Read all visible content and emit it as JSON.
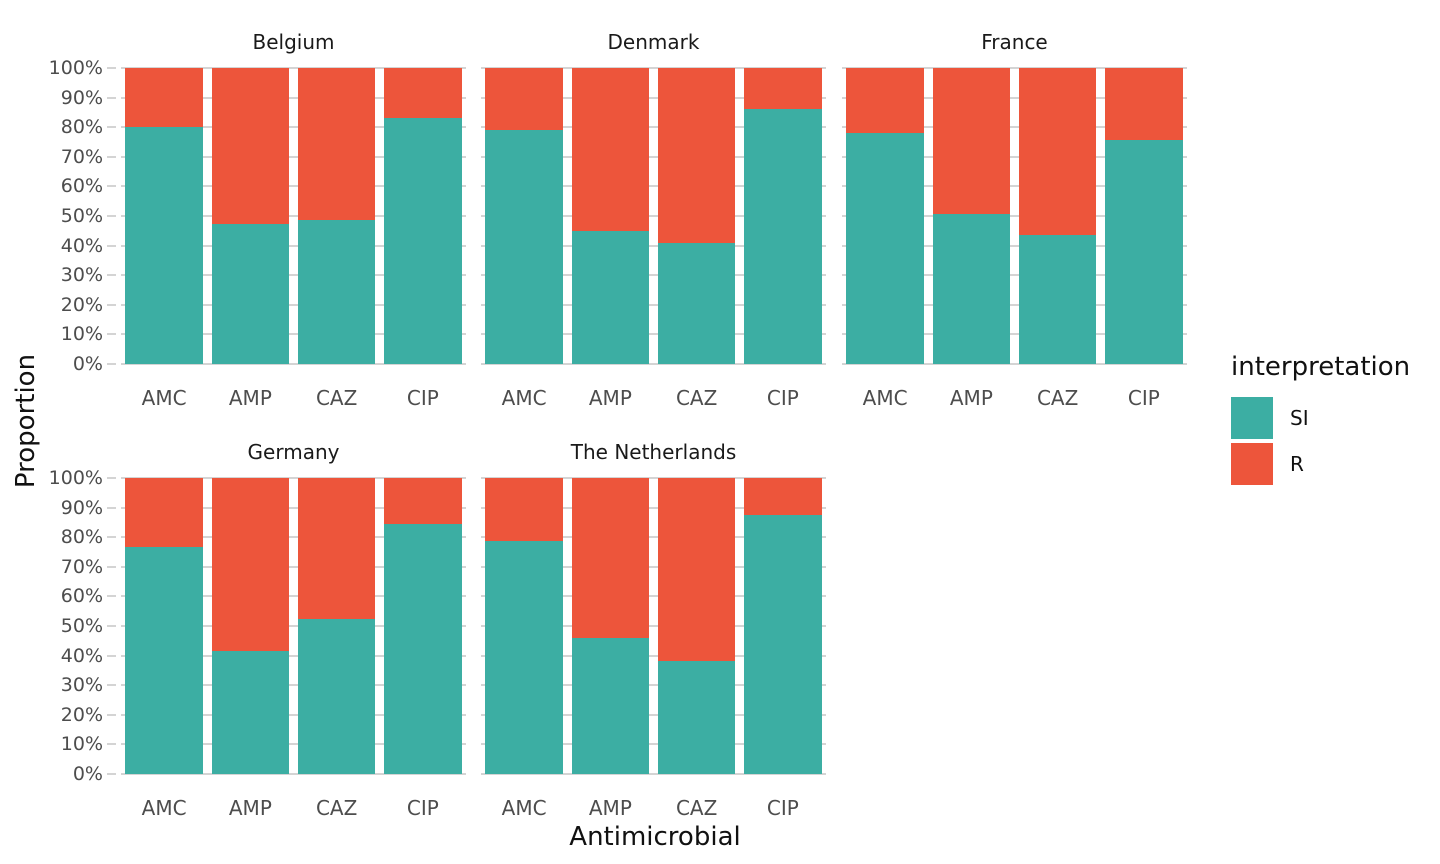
{
  "figure": {
    "y_axis_title": "Proportion",
    "x_axis_title": "Antimicrobial",
    "y_tick_labels": [
      "100%",
      "90%",
      "80%",
      "70%",
      "60%",
      "50%",
      "40%",
      "30%",
      "20%",
      "10%",
      "0%"
    ],
    "colors": {
      "si": "#3CAEA3",
      "r": "#ED553B",
      "gridline": "#D4D4D4",
      "tick_text": "#4D4D4D"
    }
  },
  "legend": {
    "title": "interpretation",
    "items": [
      {
        "label": "SI",
        "color": "#3CAEA3"
      },
      {
        "label": "R",
        "color": "#ED553B"
      }
    ]
  },
  "chart_data": {
    "type": "bar",
    "stacked": true,
    "units": "percent",
    "xlabel": "Antimicrobial",
    "ylabel": "Proportion",
    "ylim": [
      0,
      100
    ],
    "y_ticks_percent": [
      0,
      10,
      20,
      30,
      40,
      50,
      60,
      70,
      80,
      90,
      100
    ],
    "grid": "horizontal-only",
    "legend_position": "right",
    "legend_title": "interpretation",
    "categories": [
      "AMC",
      "AMP",
      "CAZ",
      "CIP"
    ],
    "facets": [
      {
        "title": "Belgium",
        "row": 0,
        "col": 0,
        "show_y_axis": true,
        "series": [
          {
            "name": "SI",
            "values": [
              80.0,
              47.3,
              48.8,
              83.2
            ]
          },
          {
            "name": "R",
            "values": [
              20.0,
              52.7,
              51.2,
              16.8
            ]
          }
        ]
      },
      {
        "title": "Denmark",
        "row": 0,
        "col": 1,
        "show_y_axis": false,
        "series": [
          {
            "name": "SI",
            "values": [
              79.2,
              44.8,
              40.9,
              86.2
            ]
          },
          {
            "name": "R",
            "values": [
              20.8,
              55.2,
              59.1,
              13.8
            ]
          }
        ]
      },
      {
        "title": "France",
        "row": 0,
        "col": 2,
        "show_y_axis": false,
        "series": [
          {
            "name": "SI",
            "values": [
              78.0,
              50.7,
              43.7,
              75.6
            ]
          },
          {
            "name": "R",
            "values": [
              22.0,
              49.3,
              56.3,
              24.4
            ]
          }
        ]
      },
      {
        "title": "Germany",
        "row": 1,
        "col": 0,
        "show_y_axis": true,
        "series": [
          {
            "name": "SI",
            "values": [
              76.8,
              41.5,
              52.4,
              84.3
            ]
          },
          {
            "name": "R",
            "values": [
              23.2,
              58.5,
              47.6,
              15.7
            ]
          }
        ]
      },
      {
        "title": "The Netherlands",
        "row": 1,
        "col": 1,
        "show_y_axis": false,
        "series": [
          {
            "name": "SI",
            "values": [
              78.7,
              45.8,
              38.2,
              87.5
            ]
          },
          {
            "name": "R",
            "values": [
              21.3,
              54.2,
              61.8,
              12.5
            ]
          }
        ]
      }
    ]
  }
}
